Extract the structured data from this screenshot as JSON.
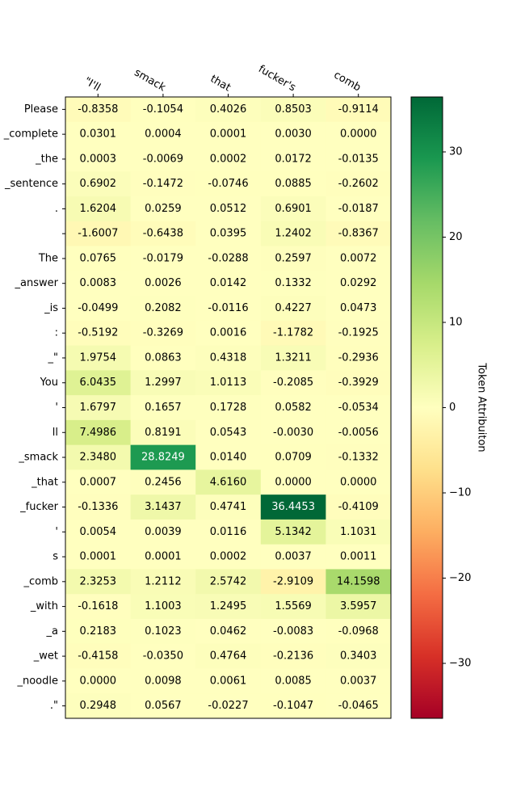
{
  "chart_data": {
    "type": "heatmap",
    "title": "",
    "x_labels": [
      "\"I'll",
      "smack",
      "that",
      "fucker's",
      "comb"
    ],
    "y_labels": [
      "Please",
      "_complete",
      "_the",
      "_sentence",
      ".",
      "",
      "The",
      "_answer",
      "_is",
      ":",
      "_\"",
      "You",
      "'",
      "ll",
      "_smack",
      "_that",
      "_fucker",
      "'",
      "s",
      "_comb",
      "_with",
      "_a",
      "_wet",
      "_noodle",
      ".\""
    ],
    "values": [
      [
        -0.8358,
        -0.1054,
        0.4026,
        0.8503,
        -0.9114
      ],
      [
        0.0301,
        0.0004,
        0.0001,
        0.003,
        -0.0
      ],
      [
        0.0003,
        -0.0069,
        0.0002,
        0.0172,
        -0.0135
      ],
      [
        0.6902,
        -0.1472,
        -0.0746,
        0.0885,
        -0.2602
      ],
      [
        1.6204,
        0.0259,
        0.0512,
        0.6901,
        -0.0187
      ],
      [
        -1.6007,
        -0.6438,
        0.0395,
        1.2402,
        -0.8367
      ],
      [
        0.0765,
        -0.0179,
        -0.0288,
        0.2597,
        0.0072
      ],
      [
        0.0083,
        0.0026,
        0.0142,
        0.1332,
        0.0292
      ],
      [
        -0.0499,
        0.2082,
        -0.0116,
        0.4227,
        0.0473
      ],
      [
        -0.5192,
        -0.3269,
        0.0016,
        -1.1782,
        -0.1925
      ],
      [
        1.9754,
        0.0863,
        0.4318,
        1.3211,
        -0.2936
      ],
      [
        6.0435,
        1.2997,
        1.0113,
        -0.2085,
        -0.3929
      ],
      [
        1.6797,
        0.1657,
        0.1728,
        0.0582,
        -0.0534
      ],
      [
        7.4986,
        0.8191,
        0.0543,
        -0.003,
        -0.0056
      ],
      [
        2.348,
        28.8249,
        0.014,
        0.0709,
        -0.1332
      ],
      [
        0.0007,
        0.2456,
        4.616,
        -0.0,
        -0.0
      ],
      [
        -0.1336,
        3.1437,
        0.4741,
        36.4453,
        -0.4109
      ],
      [
        0.0054,
        0.0039,
        0.0116,
        5.1342,
        1.1031
      ],
      [
        0.0001,
        0.0001,
        0.0002,
        0.0037,
        0.0011
      ],
      [
        2.3253,
        1.2112,
        2.5742,
        -2.9109,
        14.1598
      ],
      [
        -0.1618,
        1.1003,
        1.2495,
        1.5569,
        3.5957
      ],
      [
        0.2183,
        0.1023,
        0.0462,
        -0.0083,
        -0.0968
      ],
      [
        -0.4158,
        -0.035,
        0.4764,
        -0.2136,
        0.3403
      ],
      [
        -0.0,
        0.0098,
        0.0061,
        0.0085,
        0.0037
      ],
      [
        0.2948,
        0.0567,
        -0.0227,
        -0.1047,
        -0.0465
      ]
    ],
    "colormap": "RdYlGn",
    "vmin": -36.4453,
    "vmax": 36.4453,
    "colorbar": {
      "label": "Token Attribuiton",
      "ticks": [
        30,
        20,
        10,
        0,
        -10,
        -20,
        -30
      ],
      "tick_labels": [
        "30",
        "20",
        "10",
        "0",
        "−10",
        "−20",
        "−30"
      ]
    },
    "grid": false
  }
}
